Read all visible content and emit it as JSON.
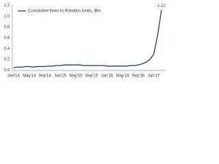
{
  "chart_data": {
    "type": "line",
    "categories": [
      "Jan'14",
      null,
      null,
      null,
      "May'14",
      null,
      null,
      null,
      "Sep'14",
      null,
      null,
      null,
      "Jan'15",
      null,
      null,
      null,
      "May'15",
      null,
      null,
      null,
      "Sep'15",
      null,
      null,
      null,
      "Jan'16",
      null,
      null,
      null,
      "May'16",
      null,
      null,
      null,
      "Sep'16",
      null,
      null,
      null,
      "Jan'17",
      null,
      null
    ],
    "series": [
      {
        "name": "Cumulative flows to Robotics funds, $bn",
        "color": "#1f3864",
        "values": [
          0.05,
          0.06,
          0.06,
          0.07,
          0.07,
          0.06,
          0.07,
          0.07,
          0.07,
          0.08,
          0.08,
          0.09,
          0.09,
          0.1,
          0.1,
          0.1,
          0.1,
          0.1,
          0.09,
          0.09,
          0.09,
          0.09,
          0.09,
          0.09,
          0.08,
          0.08,
          0.08,
          0.08,
          0.08,
          0.08,
          0.09,
          0.09,
          0.1,
          0.12,
          0.15,
          0.2,
          0.3,
          0.65,
          1.12
        ]
      }
    ],
    "ylim": [
      0,
      1.2
    ],
    "yticks": [
      {
        "value": 0,
        "label": "0.0"
      },
      {
        "value": 0.2,
        "label": "0.2"
      },
      {
        "value": 0.4,
        "label": "0.4"
      },
      {
        "value": 0.6,
        "label": "0.6"
      },
      {
        "value": 0.8,
        "label": "0.8"
      },
      {
        "value": 1,
        "label": "1.0"
      },
      {
        "value": 1.2,
        "label": "1.2"
      }
    ],
    "legend": "upper left"
  }
}
